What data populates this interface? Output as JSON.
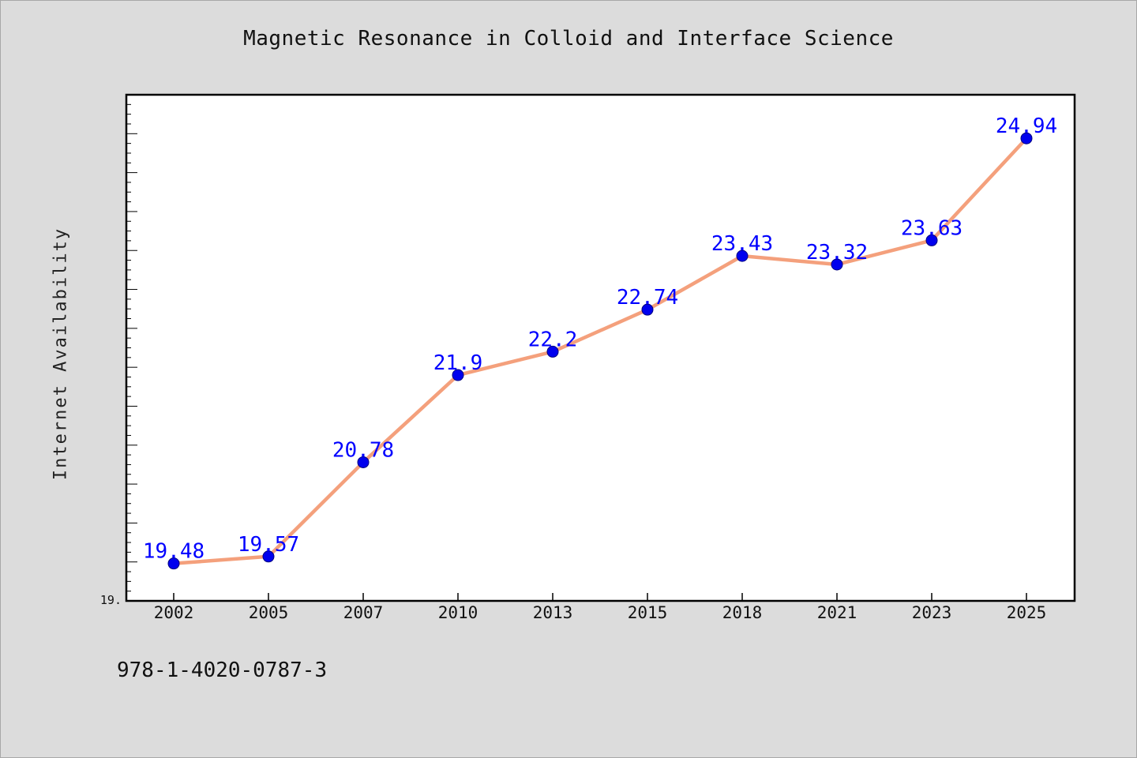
{
  "colors": {
    "background": "#dcdcdc",
    "plot_background": "#ffffff",
    "line": "#f4a07c",
    "marker": "#0000ee",
    "marker_edge": "#000080",
    "data_label": "#0000ff",
    "axis": "#000000"
  },
  "footer": "978-1-4020-0787-3",
  "chart_data": {
    "type": "line",
    "title": "Magnetic Resonance in Colloid and Interface Science",
    "xlabel": "",
    "ylabel": "Internet Availability",
    "categories": [
      "2002",
      "2005",
      "2007",
      "2010",
      "2013",
      "2015",
      "2018",
      "2021",
      "2023",
      "2025"
    ],
    "series": [
      {
        "values": [
          19.48,
          19.57,
          20.78,
          21.9,
          22.2,
          22.74,
          23.43,
          23.32,
          23.63,
          24.94
        ]
      }
    ],
    "y_tick_labels": [
      "19."
    ],
    "ylim": [
      19.0,
      25.5
    ],
    "grid": false,
    "legend": "none",
    "data_labels": true
  }
}
